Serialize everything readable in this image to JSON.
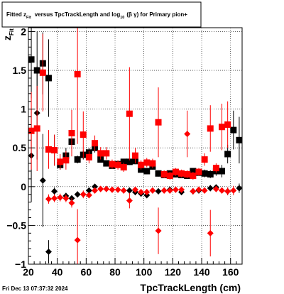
{
  "chart_data": {
    "type": "scatter",
    "title_parts": {
      "prefix": "Fitted  z",
      "sub1": "Fit",
      "middle": "versus TpcTrackLength and log",
      "sub2": "10",
      "suffix": "(β  γ) for Primary pion+"
    },
    "xlabel": "TpcTrackLength (cm)",
    "ylabel_main": "z",
    "ylabel_sub": "Fit",
    "xlim": [
      20,
      168
    ],
    "ylim": [
      -1,
      2.05
    ],
    "xticks": [
      20,
      40,
      60,
      80,
      100,
      120,
      140,
      160
    ],
    "yticks": [
      -1,
      -0.5,
      0,
      0.5,
      1,
      1.5,
      2
    ],
    "ytick_labels": [
      "−1",
      "−0.5",
      "0",
      "0.5",
      "1",
      "1.5",
      "2"
    ],
    "grid": true,
    "colors": {
      "black": "#000000",
      "red": "#ff0000"
    },
    "timestamp": "Fri Dec 13 07:37:32 2024",
    "series": [
      {
        "marker": "square",
        "color": "#000000",
        "points": [
          {
            "x": 22,
            "y": 1.64,
            "err": 0.5
          },
          {
            "x": 26,
            "y": 1.5,
            "err": 0.5
          },
          {
            "x": 30,
            "y": 1.59,
            "err": 0.4
          },
          {
            "x": 34,
            "y": 1.4,
            "err": 0.5
          },
          {
            "x": 38,
            "y": 0.47,
            "err": 0.2
          },
          {
            "x": 42,
            "y": 0.28,
            "err": 0.06
          },
          {
            "x": 46,
            "y": 0.4,
            "err": 0.1
          },
          {
            "x": 50,
            "y": 0.58,
            "err": 0.1
          },
          {
            "x": 54,
            "y": 0.35,
            "err": 0.05
          },
          {
            "x": 58,
            "y": 0.41,
            "err": 0.06
          },
          {
            "x": 62,
            "y": 0.44,
            "err": 0.06
          },
          {
            "x": 66,
            "y": 0.5,
            "err": 0.06
          },
          {
            "x": 70,
            "y": 0.35,
            "err": 0.04
          },
          {
            "x": 74,
            "y": 0.3,
            "err": 0.04
          },
          {
            "x": 78,
            "y": 0.27,
            "err": 0.04
          },
          {
            "x": 82,
            "y": 0.29,
            "err": 0.04
          },
          {
            "x": 86,
            "y": 0.32,
            "err": 0.04
          },
          {
            "x": 90,
            "y": 0.32,
            "err": 0.04
          },
          {
            "x": 94,
            "y": 0.33,
            "err": 0.04
          },
          {
            "x": 98,
            "y": 0.22,
            "err": 0.04
          },
          {
            "x": 102,
            "y": 0.2,
            "err": 0.04
          },
          {
            "x": 106,
            "y": 0.26,
            "err": 0.04
          },
          {
            "x": 110,
            "y": 0.17,
            "err": 0.04
          },
          {
            "x": 114,
            "y": 0.15,
            "err": 0.04
          },
          {
            "x": 118,
            "y": 0.17,
            "err": 0.04
          },
          {
            "x": 122,
            "y": 0.16,
            "err": 0.04
          },
          {
            "x": 126,
            "y": 0.15,
            "err": 0.04
          },
          {
            "x": 130,
            "y": 0.14,
            "err": 0.04
          },
          {
            "x": 134,
            "y": 0.2,
            "err": 0.04
          },
          {
            "x": 138,
            "y": 0.18,
            "err": 0.04
          },
          {
            "x": 142,
            "y": 0.17,
            "err": 0.05
          },
          {
            "x": 146,
            "y": 0.16,
            "err": 0.05
          },
          {
            "x": 150,
            "y": 0.2,
            "err": 0.06
          },
          {
            "x": 154,
            "y": 0.2,
            "err": 0.08
          },
          {
            "x": 158,
            "y": 0.42,
            "err": 0.12
          },
          {
            "x": 162,
            "y": 0.73,
            "err": 0.25
          },
          {
            "x": 166,
            "y": 0.6,
            "err": 0.3
          }
        ]
      },
      {
        "marker": "diamond",
        "color": "#000000",
        "points": [
          {
            "x": 22,
            "y": 0.4,
            "err": 0.6
          },
          {
            "x": 26,
            "y": 0.95,
            "err": 0.6
          },
          {
            "x": 30,
            "y": 0.08,
            "err": 0.6
          },
          {
            "x": 34,
            "y": -0.84,
            "err": 0.15
          },
          {
            "x": 38,
            "y": -0.06,
            "err": 0.05
          },
          {
            "x": 46,
            "y": -0.12,
            "err": 0.04
          },
          {
            "x": 50,
            "y": -0.15,
            "err": 0.04
          },
          {
            "x": 54,
            "y": -0.1,
            "err": 0.04
          },
          {
            "x": 62,
            "y": -0.05,
            "err": 0.04
          },
          {
            "x": 66,
            "y": 0.0,
            "err": 0.03
          },
          {
            "x": 90,
            "y": -0.05,
            "err": 0.04
          },
          {
            "x": 94,
            "y": -0.07,
            "err": 0.04
          },
          {
            "x": 98,
            "y": -0.09,
            "err": 0.04
          },
          {
            "x": 102,
            "y": -0.11,
            "err": 0.04
          },
          {
            "x": 110,
            "y": -0.06,
            "err": 0.04
          },
          {
            "x": 118,
            "y": -0.04,
            "err": 0.04
          },
          {
            "x": 126,
            "y": -0.07,
            "err": 0.04
          },
          {
            "x": 134,
            "y": -0.06,
            "err": 0.04
          },
          {
            "x": 138,
            "y": -0.05,
            "err": 0.04
          },
          {
            "x": 146,
            "y": -0.02,
            "err": 0.04
          },
          {
            "x": 150,
            "y": -0.01,
            "err": 0.04
          },
          {
            "x": 158,
            "y": -0.06,
            "err": 0.05
          },
          {
            "x": 166,
            "y": -0.02,
            "err": 0.06
          }
        ]
      },
      {
        "marker": "square",
        "color": "#ff0000",
        "points": [
          {
            "x": 22,
            "y": 0.72,
            "err": 0.5
          },
          {
            "x": 26,
            "y": 0.75,
            "err": 0.55
          },
          {
            "x": 30,
            "y": 1.47,
            "err": 0.5
          },
          {
            "x": 34,
            "y": 0.48,
            "err": 0.25
          },
          {
            "x": 38,
            "y": 0.47,
            "err": 0.2
          },
          {
            "x": 42,
            "y": 0.32,
            "err": 0.1
          },
          {
            "x": 46,
            "y": 0.34,
            "err": 0.12
          },
          {
            "x": 50,
            "y": 0.69,
            "err": 0.3
          },
          {
            "x": 54,
            "y": 1.45,
            "err": 0.9
          },
          {
            "x": 58,
            "y": 0.67,
            "err": 0.3
          },
          {
            "x": 62,
            "y": 0.38,
            "err": 0.08
          },
          {
            "x": 66,
            "y": 0.56,
            "err": 0.1
          },
          {
            "x": 70,
            "y": 0.43,
            "err": 0.08
          },
          {
            "x": 74,
            "y": 0.43,
            "err": 0.08
          },
          {
            "x": 78,
            "y": 0.29,
            "err": 0.06
          },
          {
            "x": 82,
            "y": 0.28,
            "err": 0.06
          },
          {
            "x": 86,
            "y": 0.25,
            "err": 0.06
          },
          {
            "x": 90,
            "y": 0.94,
            "err": 0.6
          },
          {
            "x": 94,
            "y": 0.4,
            "err": 0.1
          },
          {
            "x": 98,
            "y": 0.28,
            "err": 0.06
          },
          {
            "x": 102,
            "y": 0.31,
            "err": 0.06
          },
          {
            "x": 106,
            "y": 0.3,
            "err": 0.06
          },
          {
            "x": 110,
            "y": 0.83,
            "err": 0.45
          },
          {
            "x": 114,
            "y": 0.16,
            "err": 0.05
          },
          {
            "x": 118,
            "y": 0.14,
            "err": 0.05
          },
          {
            "x": 122,
            "y": 0.19,
            "err": 0.05
          },
          {
            "x": 126,
            "y": 0.17,
            "err": 0.05
          },
          {
            "x": 130,
            "y": 0.16,
            "err": 0.05
          },
          {
            "x": 134,
            "y": 0.14,
            "err": 0.05
          },
          {
            "x": 138,
            "y": 0.19,
            "err": 0.05
          },
          {
            "x": 142,
            "y": 0.35,
            "err": 0.08
          },
          {
            "x": 146,
            "y": 0.75,
            "err": 0.3
          },
          {
            "x": 150,
            "y": 0.24,
            "err": 0.06
          },
          {
            "x": 154,
            "y": 0.77,
            "err": 0.3
          },
          {
            "x": 158,
            "y": 0.8,
            "err": 0.3
          }
        ]
      },
      {
        "marker": "diamond",
        "color": "#ff0000",
        "points": [
          {
            "x": 34,
            "y": -0.16,
            "err": 0.06
          },
          {
            "x": 38,
            "y": -0.15,
            "err": 0.05
          },
          {
            "x": 42,
            "y": -0.14,
            "err": 0.05
          },
          {
            "x": 46,
            "y": -0.15,
            "err": 0.05
          },
          {
            "x": 50,
            "y": -0.21,
            "err": 0.06
          },
          {
            "x": 54,
            "y": -0.69,
            "err": 0.4
          },
          {
            "x": 58,
            "y": -0.1,
            "err": 0.05
          },
          {
            "x": 62,
            "y": -0.11,
            "err": 0.04
          },
          {
            "x": 66,
            "y": -0.05,
            "err": 0.04
          },
          {
            "x": 70,
            "y": -0.03,
            "err": 0.04
          },
          {
            "x": 74,
            "y": -0.03,
            "err": 0.04
          },
          {
            "x": 78,
            "y": -0.04,
            "err": 0.04
          },
          {
            "x": 82,
            "y": -0.04,
            "err": 0.04
          },
          {
            "x": 86,
            "y": -0.05,
            "err": 0.04
          },
          {
            "x": 90,
            "y": -0.18,
            "err": 0.1
          },
          {
            "x": 94,
            "y": -0.04,
            "err": 0.04
          },
          {
            "x": 98,
            "y": -0.07,
            "err": 0.04
          },
          {
            "x": 102,
            "y": -0.07,
            "err": 0.04
          },
          {
            "x": 106,
            "y": -0.05,
            "err": 0.04
          },
          {
            "x": 110,
            "y": -0.57,
            "err": 0.3
          },
          {
            "x": 114,
            "y": -0.05,
            "err": 0.04
          },
          {
            "x": 118,
            "y": -0.05,
            "err": 0.04
          },
          {
            "x": 122,
            "y": -0.04,
            "err": 0.04
          },
          {
            "x": 126,
            "y": -0.04,
            "err": 0.04
          },
          {
            "x": 130,
            "y": 0.68,
            "err": 0.3
          },
          {
            "x": 134,
            "y": -0.06,
            "err": 0.04
          },
          {
            "x": 138,
            "y": -0.04,
            "err": 0.04
          },
          {
            "x": 142,
            "y": -0.05,
            "err": 0.04
          },
          {
            "x": 146,
            "y": -0.6,
            "err": 0.3
          },
          {
            "x": 150,
            "y": -0.03,
            "err": 0.04
          },
          {
            "x": 154,
            "y": -0.05,
            "err": 0.04
          },
          {
            "x": 158,
            "y": -0.06,
            "err": 0.05
          },
          {
            "x": 162,
            "y": -0.05,
            "err": 0.06
          }
        ]
      }
    ]
  }
}
